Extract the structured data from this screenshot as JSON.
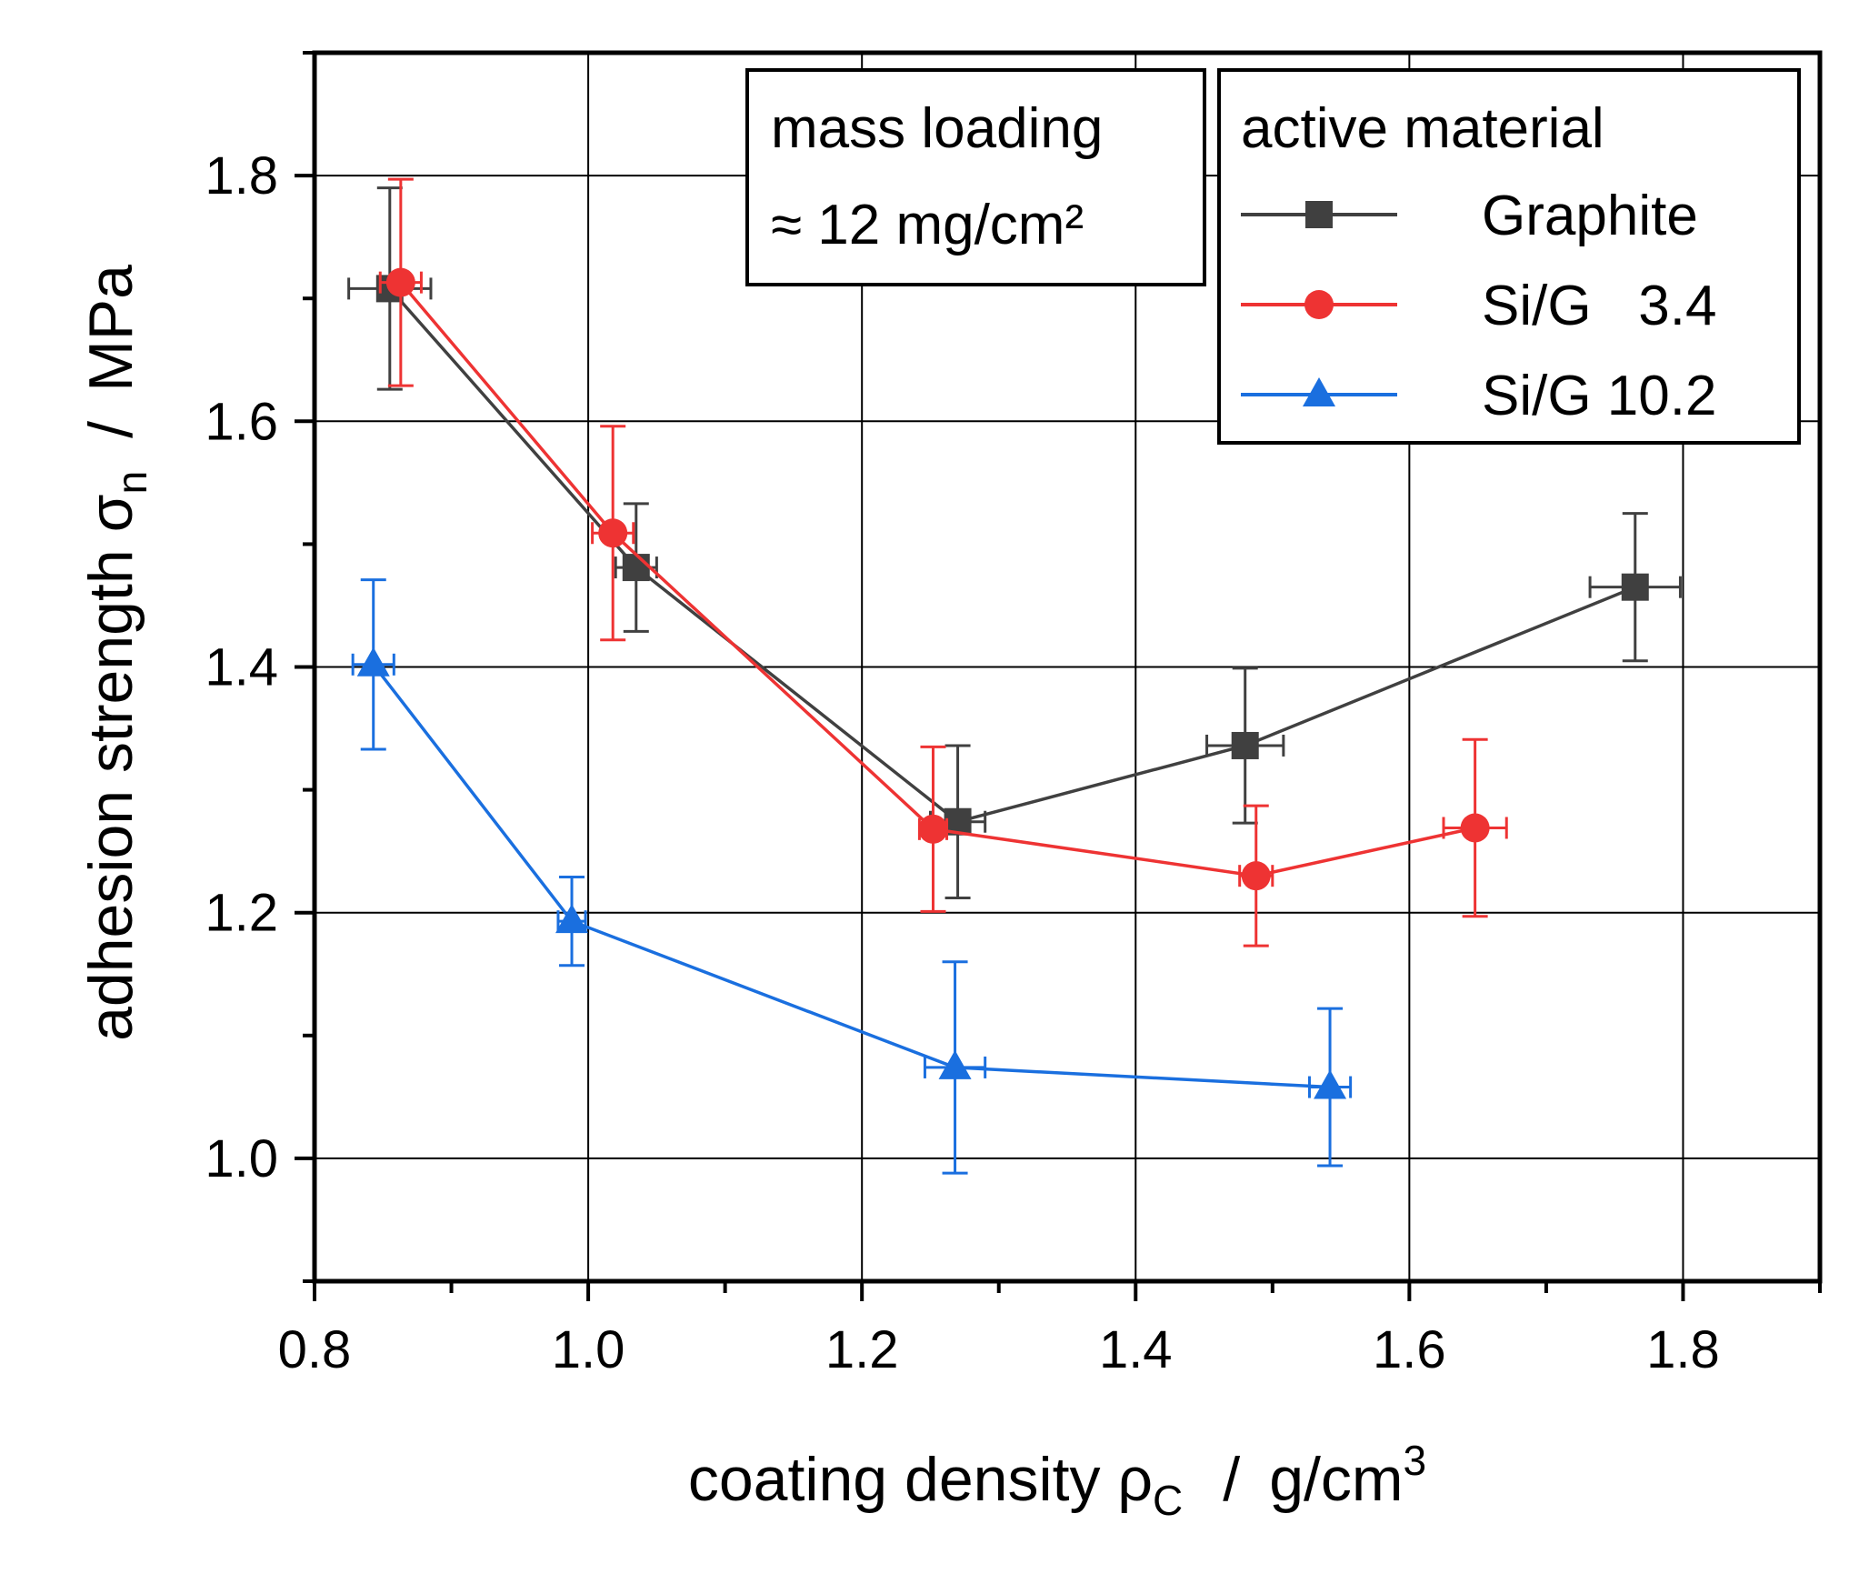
{
  "chart_data": {
    "type": "scatter",
    "xlabel": "coating density ρC / g/cm3",
    "xlabel_parts": {
      "main": "coating density ρ",
      "sub": "C",
      "sep": "/",
      "unit": "g/cm",
      "sup": "3"
    },
    "ylabel": "adhesion strength σn / MPa",
    "ylabel_parts": {
      "main": "adhesion strength σ",
      "sub": "n",
      "sep": "/",
      "unit": "MPa"
    },
    "xlim": [
      0.8,
      1.9
    ],
    "ylim": [
      0.9,
      1.9
    ],
    "xticks": [
      0.8,
      1.0,
      1.2,
      1.4,
      1.6,
      1.8
    ],
    "xtick_labels": [
      "0.8",
      "1.0",
      "1.2",
      "1.4",
      "1.6",
      "1.8"
    ],
    "yticks": [
      1.0,
      1.2,
      1.4,
      1.6,
      1.8
    ],
    "ytick_labels": [
      "1.0",
      "1.2",
      "1.4",
      "1.6",
      "1.8"
    ],
    "grid": true,
    "annotation": {
      "line1": "mass loading",
      "line2": "≈ 12 mg/cm²"
    },
    "legend": {
      "title": "active material",
      "position": "top-right"
    },
    "series": [
      {
        "name": "Graphite",
        "color": "#404040",
        "marker": "square",
        "points": [
          {
            "x": 0.855,
            "y": 1.708,
            "xerr": 0.03,
            "yerr": 0.082
          },
          {
            "x": 1.035,
            "y": 1.481,
            "xerr": 0.015,
            "yerr": 0.052
          },
          {
            "x": 1.27,
            "y": 1.274,
            "xerr": 0.02,
            "yerr": 0.062
          },
          {
            "x": 1.48,
            "y": 1.336,
            "xerr": 0.028,
            "yerr": 0.063
          },
          {
            "x": 1.765,
            "y": 1.465,
            "xerr": 0.033,
            "yerr": 0.06
          }
        ]
      },
      {
        "name": "Si/G   3.4",
        "color": "#ee3333",
        "marker": "circle",
        "points": [
          {
            "x": 0.863,
            "y": 1.713,
            "xerr": 0.015,
            "yerr": 0.084
          },
          {
            "x": 1.018,
            "y": 1.509,
            "xerr": 0.015,
            "yerr": 0.087
          },
          {
            "x": 1.252,
            "y": 1.268,
            "xerr": 0.01,
            "yerr": 0.067
          },
          {
            "x": 1.488,
            "y": 1.23,
            "xerr": 0.012,
            "yerr": 0.057
          },
          {
            "x": 1.648,
            "y": 1.269,
            "xerr": 0.023,
            "yerr": 0.072
          }
        ]
      },
      {
        "name": "Si/G 10.2",
        "color": "#1a6fdf",
        "marker": "triangle",
        "points": [
          {
            "x": 0.843,
            "y": 1.402,
            "xerr": 0.015,
            "yerr": 0.069
          },
          {
            "x": 0.988,
            "y": 1.193,
            "xerr": 0.01,
            "yerr": 0.036
          },
          {
            "x": 1.268,
            "y": 1.074,
            "xerr": 0.022,
            "yerr": 0.086
          },
          {
            "x": 1.542,
            "y": 1.058,
            "xerr": 0.015,
            "yerr": 0.064
          }
        ]
      }
    ]
  }
}
